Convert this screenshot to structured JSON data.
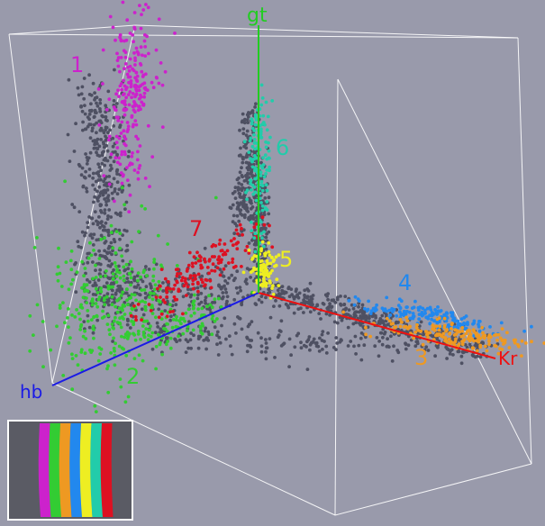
{
  "chart_data": {
    "type": "scatter",
    "projection": "3d",
    "axes": {
      "x": "Kr",
      "y": "hb",
      "z": "gt"
    },
    "axis_colors": {
      "Kr": "#ee1111",
      "hb": "#1a1ae6",
      "gt": "#22cc22"
    },
    "background_color": "#999aab",
    "box_color": "#ffffff",
    "unlabeled_color": "#4e5062",
    "clusters": [
      {
        "label": "1",
        "color": "#cc22cc",
        "approx_centroid": {
          "Kr": 0.05,
          "hb": 0.35,
          "gt": 0.95
        }
      },
      {
        "label": "2",
        "color": "#33cc33",
        "approx_centroid": {
          "Kr": 0.0,
          "hb": 0.8,
          "gt": 0.3
        }
      },
      {
        "label": "3",
        "color": "#ee9922",
        "approx_centroid": {
          "Kr": 0.85,
          "hb": 0.05,
          "gt": 0.0
        }
      },
      {
        "label": "4",
        "color": "#2288ee",
        "approx_centroid": {
          "Kr": 0.65,
          "hb": 0.0,
          "gt": 0.05
        }
      },
      {
        "label": "5",
        "color": "#eeee22",
        "approx_centroid": {
          "Kr": 0.02,
          "hb": 0.0,
          "gt": 0.12
        }
      },
      {
        "label": "6",
        "color": "#22ccaa",
        "approx_centroid": {
          "Kr": 0.0,
          "hb": 0.0,
          "gt": 0.6
        }
      },
      {
        "label": "7",
        "color": "#dd1122",
        "approx_centroid": {
          "Kr": 0.0,
          "hb": 0.3,
          "gt": 0.35
        }
      }
    ],
    "legend": "none",
    "grid": false
  },
  "inset": {
    "stripe_colors": [
      "#cc22cc",
      "#33cc33",
      "#ee9922",
      "#2288ee",
      "#eeee22",
      "#22ccaa",
      "#dd1122"
    ]
  }
}
